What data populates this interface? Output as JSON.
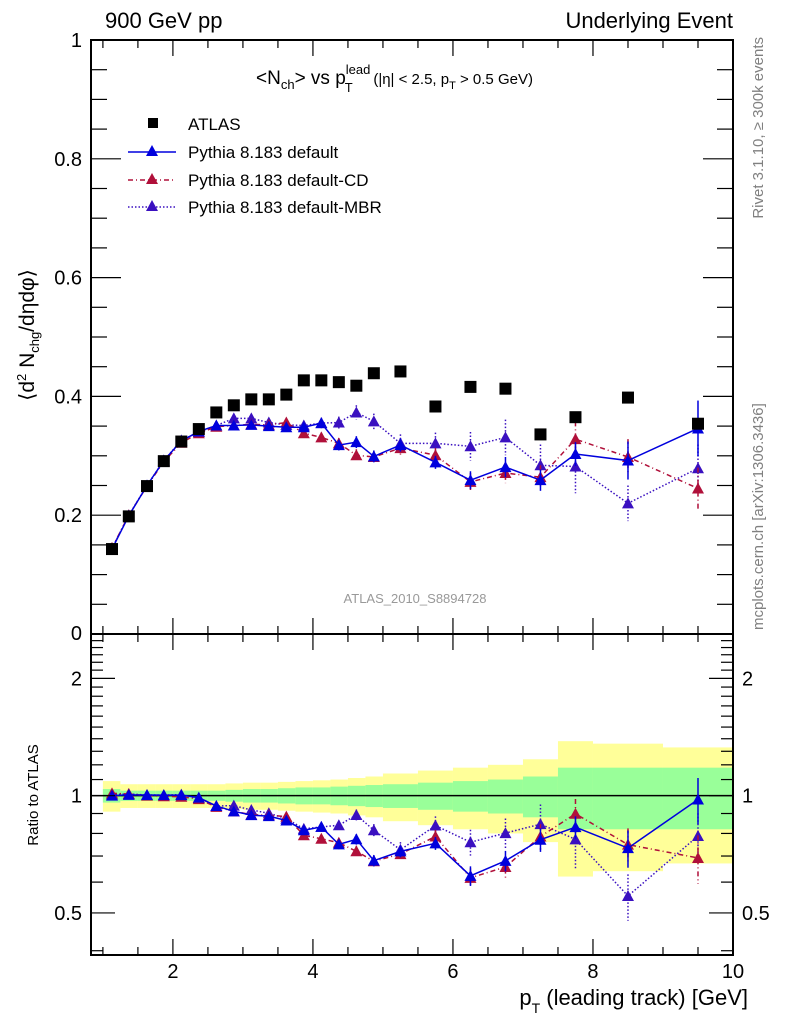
{
  "chart_data": {
    "type": "scatter",
    "header_left": "900 GeV pp",
    "header_right": "Underlying Event",
    "title": {
      "main": "<N",
      "sub_ch": "ch",
      "mid": "> vs p",
      "sub_T": "T",
      "sup_lead": "lead",
      "cuts": "(|η| < 2.5, p",
      "cuts_sub": "T",
      "cuts_end": " > 0.5 GeV)"
    },
    "ylabel": {
      "pre": "⟨d",
      "sup2": "2",
      "mid": " N",
      "sub": "chg",
      "post": "/dηdφ⟩"
    },
    "xlabel": {
      "pre": "p",
      "sub": "T",
      "post": " (leading track) [GeV]"
    },
    "ratio_ylabel": "Ratio to ATLAS",
    "analysis_label": "ATLAS_2010_S8894728",
    "side_label_top": "Rivet 3.1.10, ≥ 300k events",
    "side_label_bottom": "mcplots.cern.ch [arXiv:1306.3436]",
    "xlim": [
      0.83,
      10.0
    ],
    "ylim": [
      0,
      1
    ],
    "ratio_ylim": [
      0.39,
      2.6
    ],
    "ratio_scale": "log",
    "x_ticks": [
      "2",
      "4",
      "6",
      "8",
      "10"
    ],
    "x_tick_values": [
      2,
      4,
      6,
      8,
      10
    ],
    "y_ticks": [
      "0.2",
      "0.4",
      "0.6",
      "0.8",
      "1"
    ],
    "y_tick_values": [
      0.2,
      0.4,
      0.6,
      0.8,
      1.0
    ],
    "y_zero_label": "0",
    "ratio_ticks": [
      "0.5",
      "1",
      "2"
    ],
    "ratio_tick_values": [
      0.5,
      1,
      2
    ],
    "legend_position": "top-left",
    "x": [
      1.13,
      1.37,
      1.63,
      1.87,
      2.12,
      2.37,
      2.62,
      2.87,
      3.12,
      3.37,
      3.62,
      3.87,
      4.12,
      4.37,
      4.62,
      4.87,
      5.25,
      5.75,
      6.25,
      6.75,
      7.25,
      7.75,
      8.5,
      9.5
    ],
    "bin_edges": [
      1.0,
      1.25,
      1.5,
      1.75,
      2.0,
      2.25,
      2.5,
      2.75,
      3.0,
      3.25,
      3.5,
      3.75,
      4.0,
      4.25,
      4.5,
      4.75,
      5.0,
      5.5,
      6.0,
      6.5,
      7.0,
      7.5,
      8.0,
      9.0,
      10.0
    ],
    "data_band_inner": [
      0.04,
      0.03,
      0.03,
      0.03,
      0.03,
      0.03,
      0.03,
      0.035,
      0.04,
      0.04,
      0.045,
      0.05,
      0.05,
      0.055,
      0.06,
      0.065,
      0.07,
      0.08,
      0.09,
      0.1,
      0.12,
      0.18,
      0.18,
      0.18
    ],
    "data_band_outer": [
      0.09,
      0.07,
      0.07,
      0.07,
      0.07,
      0.07,
      0.07,
      0.075,
      0.08,
      0.08,
      0.085,
      0.09,
      0.095,
      0.1,
      0.11,
      0.12,
      0.14,
      0.16,
      0.18,
      0.2,
      0.24,
      0.38,
      0.36,
      0.33
    ],
    "series": [
      {
        "name": "ATLAS",
        "marker": "square",
        "color": "#000000",
        "line": "none",
        "values": [
          0.143,
          0.198,
          0.249,
          0.291,
          0.324,
          0.345,
          0.373,
          0.385,
          0.395,
          0.395,
          0.403,
          0.427,
          0.427,
          0.424,
          0.418,
          0.439,
          0.442,
          0.383,
          0.416,
          0.413,
          0.336,
          0.365,
          0.398,
          0.354
        ],
        "errors": [
          0.001,
          0.001,
          0.002,
          0.002,
          0.002,
          0.002,
          0.003,
          0.003,
          0.003,
          0.003,
          0.004,
          0.004,
          0.004,
          0.005,
          0.005,
          0.005,
          0.005,
          0.006,
          0.007,
          0.008,
          0.009,
          0.012,
          0.012,
          0.013
        ]
      },
      {
        "name": "Pythia 8.183 default",
        "marker": "triangle",
        "color": "#0000dd",
        "line": "solid",
        "values": [
          0.143,
          0.199,
          0.25,
          0.292,
          0.325,
          0.341,
          0.351,
          0.351,
          0.352,
          0.35,
          0.348,
          0.348,
          0.355,
          0.318,
          0.323,
          0.299,
          0.318,
          0.289,
          0.259,
          0.281,
          0.259,
          0.303,
          0.292,
          0.346
        ],
        "errors": [
          0.001,
          0.001,
          0.002,
          0.002,
          0.003,
          0.003,
          0.004,
          0.004,
          0.005,
          0.005,
          0.006,
          0.007,
          0.008,
          0.009,
          0.01,
          0.01,
          0.011,
          0.011,
          0.015,
          0.017,
          0.018,
          0.02,
          0.032,
          0.047
        ]
      },
      {
        "name": "Pythia 8.183 default-CD",
        "marker": "triangle",
        "color": "#b0103a",
        "line": "dashdot",
        "values": [
          0.145,
          0.2,
          0.249,
          0.29,
          0.322,
          0.338,
          0.349,
          0.351,
          0.353,
          0.352,
          0.356,
          0.338,
          0.331,
          0.321,
          0.301,
          0.298,
          0.313,
          0.301,
          0.256,
          0.271,
          0.264,
          0.328,
          0.298,
          0.245
        ],
        "errors": [
          0.001,
          0.001,
          0.002,
          0.002,
          0.003,
          0.003,
          0.004,
          0.004,
          0.005,
          0.005,
          0.006,
          0.007,
          0.008,
          0.009,
          0.01,
          0.01,
          0.011,
          0.012,
          0.015,
          0.017,
          0.02,
          0.03,
          0.03,
          0.035
        ]
      },
      {
        "name": "Pythia 8.183 default-MBR",
        "marker": "triangle",
        "color": "#3a10c0",
        "line": "dotted",
        "values": [
          0.144,
          0.2,
          0.25,
          0.292,
          0.326,
          0.34,
          0.351,
          0.363,
          0.363,
          0.356,
          0.352,
          0.351,
          0.355,
          0.356,
          0.373,
          0.358,
          0.321,
          0.321,
          0.316,
          0.331,
          0.284,
          0.282,
          0.22,
          0.279
        ],
        "errors": [
          0.001,
          0.001,
          0.002,
          0.002,
          0.003,
          0.003,
          0.004,
          0.005,
          0.005,
          0.006,
          0.007,
          0.008,
          0.009,
          0.01,
          0.012,
          0.013,
          0.015,
          0.018,
          0.024,
          0.03,
          0.035,
          0.045,
          0.03,
          0.04
        ]
      }
    ],
    "colors": {
      "band_inner": "#99ff99",
      "band_outer": "#ffff99",
      "side_text": "#808080",
      "analysis_text": "#999999"
    }
  }
}
